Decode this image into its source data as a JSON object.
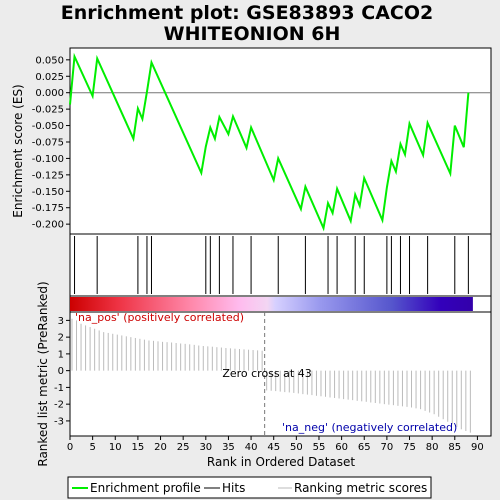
{
  "chart_data": [
    {
      "type": "line",
      "panel": "enrichment",
      "title_line1": "Enrichment plot: GSE83893 CACO2",
      "title_line2": "WHITEONION 6H",
      "ylabel": "Enrichment score (ES)",
      "xlim": [
        0,
        93
      ],
      "ylim": [
        -0.215,
        0.068
      ],
      "yticks": [
        0.05,
        0.025,
        0.0,
        -0.025,
        -0.05,
        -0.075,
        -0.1,
        -0.125,
        -0.15,
        -0.175,
        -0.2
      ],
      "ytick_labels": [
        "0.050",
        "0.025",
        "0.000",
        "-0.025",
        "-0.050",
        "-0.075",
        "-0.100",
        "-0.125",
        "-0.150",
        "-0.175",
        "-0.200"
      ],
      "line_color": "#00ee00",
      "series": [
        {
          "name": "Enrichment profile",
          "x": [
            0,
            1,
            5,
            6,
            14,
            15,
            16,
            17,
            18,
            29,
            30,
            31,
            32,
            33,
            35,
            36,
            39,
            40,
            45,
            46,
            51,
            52,
            56,
            57,
            58,
            59,
            62,
            63,
            64,
            65,
            69,
            70,
            71,
            72,
            73,
            74,
            75,
            78,
            79,
            84,
            85,
            87,
            88
          ],
          "y": [
            -0.018,
            0.055,
            -0.005,
            0.052,
            -0.07,
            -0.024,
            -0.04,
            0.002,
            0.046,
            -0.122,
            -0.082,
            -0.053,
            -0.07,
            -0.037,
            -0.063,
            -0.036,
            -0.084,
            -0.053,
            -0.133,
            -0.1,
            -0.177,
            -0.143,
            -0.206,
            -0.168,
            -0.183,
            -0.146,
            -0.195,
            -0.155,
            -0.172,
            -0.13,
            -0.194,
            -0.144,
            -0.104,
            -0.12,
            -0.078,
            -0.094,
            -0.047,
            -0.095,
            -0.046,
            -0.123,
            -0.05,
            -0.083,
            0.0
          ]
        }
      ]
    },
    {
      "type": "hits",
      "panel": "hits",
      "hit_positions": [
        1,
        6,
        15,
        17,
        18,
        30,
        31,
        33,
        36,
        40,
        46,
        52,
        57,
        59,
        63,
        65,
        70,
        71,
        73,
        75,
        79,
        85,
        88
      ]
    },
    {
      "type": "bar",
      "panel": "ranked-metric",
      "xlabel": "Rank in Ordered Dataset",
      "ylabel": "Ranked list metric (PreRanked)",
      "xlim": [
        0,
        93
      ],
      "ylim": [
        -3.9,
        3.5
      ],
      "xticks": [
        0,
        5,
        10,
        15,
        20,
        25,
        30,
        35,
        40,
        45,
        50,
        55,
        60,
        65,
        70,
        75,
        80,
        85,
        90
      ],
      "yticks": [
        3,
        2,
        1,
        0,
        -1,
        -2,
        -3
      ],
      "x": [
        0,
        1,
        2,
        3,
        4,
        5,
        6,
        7,
        8,
        9,
        10,
        11,
        12,
        13,
        14,
        15,
        16,
        17,
        18,
        19,
        20,
        21,
        22,
        23,
        24,
        25,
        26,
        27,
        28,
        29,
        30,
        31,
        32,
        33,
        34,
        35,
        36,
        37,
        38,
        39,
        40,
        41,
        42,
        43,
        44,
        45,
        46,
        47,
        48,
        49,
        50,
        51,
        52,
        53,
        54,
        55,
        56,
        57,
        58,
        59,
        60,
        61,
        62,
        63,
        64,
        65,
        66,
        67,
        68,
        69,
        70,
        71,
        72,
        73,
        74,
        75,
        76,
        77,
        78,
        79,
        80,
        81,
        82,
        83,
        84,
        85,
        86,
        87,
        88
      ],
      "values": [
        3.1,
        3.0,
        2.8,
        2.7,
        2.6,
        2.5,
        2.4,
        2.3,
        2.25,
        2.2,
        2.15,
        2.1,
        2.05,
        2.0,
        1.95,
        1.9,
        1.85,
        1.8,
        1.78,
        1.75,
        1.72,
        1.7,
        1.68,
        1.65,
        1.62,
        1.6,
        1.57,
        1.54,
        1.5,
        1.47,
        1.45,
        1.43,
        1.4,
        1.38,
        1.35,
        1.33,
        1.31,
        1.29,
        1.27,
        1.25,
        1.23,
        1.21,
        1.19,
        -1.18,
        -1.2,
        -1.22,
        -1.25,
        -1.28,
        -1.3,
        -1.33,
        -1.36,
        -1.4,
        -1.43,
        -1.46,
        -1.5,
        -1.53,
        -1.56,
        -1.6,
        -1.63,
        -1.66,
        -1.7,
        -1.73,
        -1.76,
        -1.8,
        -1.83,
        -1.86,
        -1.9,
        -1.93,
        -1.96,
        -2.0,
        -2.03,
        -2.06,
        -2.1,
        -2.13,
        -2.16,
        -2.2,
        -2.25,
        -2.3,
        -2.4,
        -2.5,
        -2.6,
        -2.75,
        -2.9,
        -3.05,
        -3.2,
        -3.35,
        -3.5,
        -3.6,
        -3.7
      ],
      "zero_cross": 43,
      "zero_cross_label": "Zero cross at 43",
      "pos_label": "'na_pos' (positively correlated)",
      "neg_label": "'na_neg' (negatively correlated)",
      "pos_color": "#cc0000",
      "neg_color": "#0000aa"
    }
  ],
  "legend": {
    "items": [
      {
        "label": "Enrichment profile",
        "color": "#00ee00"
      },
      {
        "label": "Hits",
        "color": "#000000"
      },
      {
        "label": "Ranking metric scores",
        "color": "#bbbbbb"
      }
    ]
  }
}
